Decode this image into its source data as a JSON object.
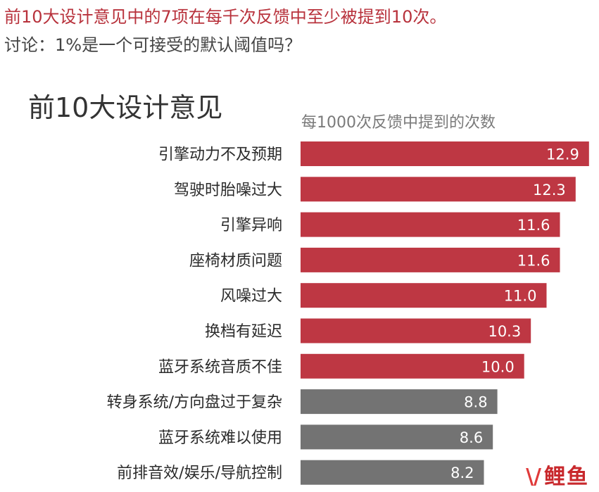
{
  "header": {
    "headline": "前10大设计意见中的7项在每千次反馈中至少被提到10次。",
    "discussion": "讨论：1%是一个可接受的默认阈值吗？"
  },
  "chart_data": {
    "type": "bar",
    "orientation": "horizontal",
    "title": "前10大设计意见",
    "xlabel": "每1000次反馈中提到的次数",
    "categories": [
      "引擎动力不及预期",
      "驾驶时胎噪过大",
      "引擎异响",
      "座椅材质问题",
      "风噪过大",
      "换档有延迟",
      "蓝牙系统音质不佳",
      "转身系统/方向盘过于复杂",
      "蓝牙系统难以使用",
      "前排音效/娱乐/导航控制"
    ],
    "values": [
      12.9,
      12.3,
      11.6,
      11.6,
      11.0,
      10.3,
      10.0,
      8.8,
      8.6,
      8.2
    ],
    "value_labels": [
      "12.9",
      "12.3",
      "11.6",
      "11.6",
      "11.0",
      "10.3",
      "10.0",
      "8.8",
      "8.6",
      "8.2"
    ],
    "xlim": [
      0,
      13
    ],
    "grid": false,
    "legend": "none",
    "highlight_threshold": 10,
    "colors": {
      "highlight": "#be3743",
      "other": "#737373"
    }
  },
  "watermark": {
    "mark": "\\/",
    "text": "鲤鱼"
  }
}
